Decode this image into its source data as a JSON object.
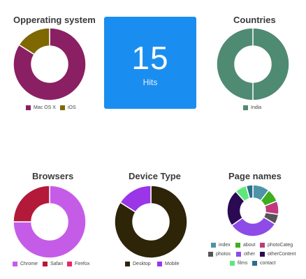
{
  "hits": {
    "value": "15",
    "label": "Hits",
    "color": "#1a8ef0"
  },
  "chart_data": [
    {
      "id": "os",
      "type": "pie",
      "title": "Opperating system",
      "labels": [
        "Mac OS X",
        "iOS"
      ],
      "values": [
        84,
        16
      ],
      "colors": [
        "#8b1f63",
        "#7f6800"
      ]
    },
    {
      "id": "countries",
      "type": "pie",
      "title": "Countries",
      "labels": [
        "India"
      ],
      "values": [
        100
      ],
      "colors": [
        "#4f8a72"
      ]
    },
    {
      "id": "browsers",
      "type": "pie",
      "title": "Browsers",
      "labels": [
        "Chrome",
        "Safari",
        "Firefox"
      ],
      "values": [
        75,
        25,
        0
      ],
      "colors": [
        "#c55ce8",
        "#b31a3a",
        "#e8266e"
      ]
    },
    {
      "id": "device",
      "type": "pie",
      "title": "Device Type",
      "labels": [
        "Desktop",
        "Mobile"
      ],
      "values": [
        84,
        16
      ],
      "colors": [
        "#2e2408",
        "#9a35e8"
      ]
    },
    {
      "id": "pages",
      "type": "pie",
      "title": "Page names",
      "labels": [
        "index",
        "about",
        "photoCateg",
        "photos",
        "other",
        "otherContent",
        "films",
        "contact"
      ],
      "values": [
        10,
        8,
        8,
        6,
        30,
        22,
        7,
        4
      ],
      "colors": [
        "#4f93a8",
        "#3fae1e",
        "#c0387e",
        "#555555",
        "#8d4be8",
        "#2a0a52",
        "#5fe87a",
        "#2a6f8a"
      ]
    }
  ]
}
